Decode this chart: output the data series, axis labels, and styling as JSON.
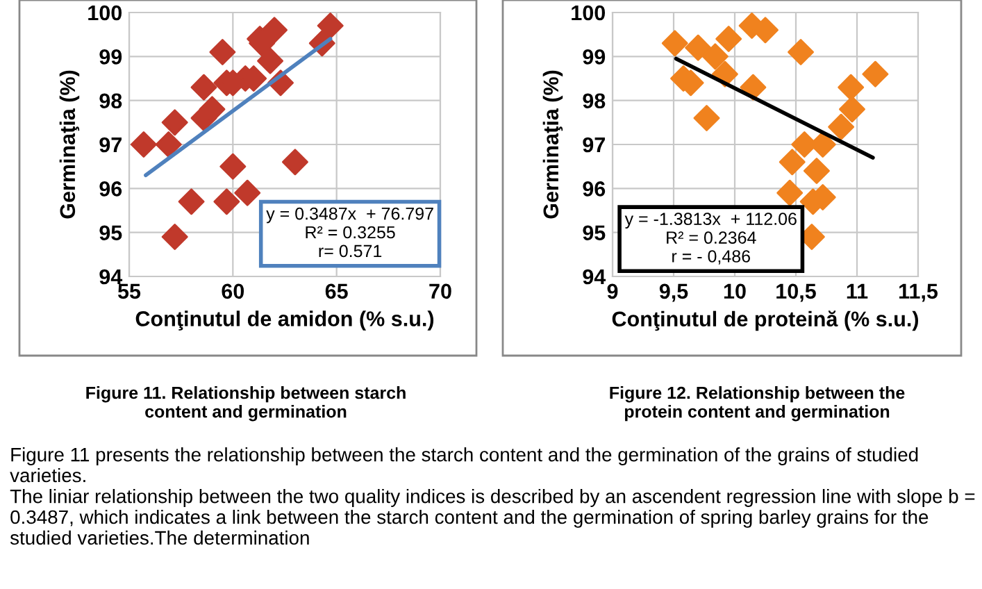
{
  "chart_data": [
    {
      "type": "scatter",
      "xlabel": "Conţinutul de amidon (% s.u.)",
      "ylabel": "Germinaţia (%)",
      "xlim": [
        55,
        70
      ],
      "xticks": [
        55,
        60,
        65,
        70
      ],
      "ylim": [
        94,
        100
      ],
      "yticks": [
        94,
        95,
        96,
        97,
        98,
        99,
        100
      ],
      "grid": true,
      "marker": "diamond",
      "series": [
        {
          "color": "#c0392b",
          "x": [
            55.7,
            56.9,
            57.2,
            57.2,
            58.0,
            58.6,
            58.6,
            59.0,
            59.5,
            59.7,
            60.0,
            59.7,
            60.0,
            60.7,
            60.6,
            61.0,
            61.3,
            61.4,
            61.8,
            62.0,
            62.3,
            63.0,
            64.3,
            64.7
          ],
          "values": [
            97.0,
            97.0,
            97.5,
            94.9,
            95.7,
            98.3,
            97.6,
            97.8,
            99.1,
            98.4,
            98.4,
            95.7,
            96.5,
            95.9,
            98.5,
            98.5,
            99.4,
            99.3,
            98.9,
            99.6,
            98.4,
            96.6,
            99.3,
            99.7
          ]
        },
        {
          "type": "line",
          "marker": "none",
          "color": "#4f81bd",
          "x": [
            55.8,
            64.7
          ],
          "values": [
            96.3,
            99.4
          ]
        }
      ],
      "annotations": [
        "y = 0.3487x  + 76.797\nR² = 0.3255\nr= 0.571",
        "Figure 11. Relationship between starch\ncontent and germination",
        "Figure 11 presents the relationship between the starch content and the germination of the grains of studied varieties.",
        "The liniar relationship between the two quality indices is described by an ascendent regression line with slope b = 0.3487, which indicates a link between the starch content and the germination of spring barley grains for the studied varieties.The determination"
      ]
    },
    {
      "type": "scatter",
      "xlabel": "Conţinutul de proteină (% s.u.)",
      "ylabel": "Germinaţia (%)",
      "xlim": [
        9,
        11.5
      ],
      "xticks": [
        {
          "value": 9,
          "label": "9"
        },
        {
          "value": 9.5,
          "label": "9,5"
        },
        {
          "value": 10,
          "label": "10"
        },
        {
          "value": 10.5,
          "label": "10,5"
        },
        {
          "value": 11,
          "label": "11"
        },
        {
          "value": 11.5,
          "label": "11,5"
        }
      ],
      "ylim": [
        94,
        100
      ],
      "yticks": [
        94,
        95,
        96,
        97,
        98,
        99,
        100
      ],
      "grid": true,
      "marker": "diamond",
      "series": [
        {
          "color": "#f0821e",
          "x": [
            9.51,
            9.58,
            9.64,
            9.7,
            9.77,
            9.84,
            9.92,
            9.95,
            10.15,
            10.14,
            10.25,
            10.54,
            10.45,
            10.47,
            10.57,
            10.67,
            10.64,
            10.72,
            10.63,
            10.72,
            10.87,
            10.96,
            10.95,
            11.15
          ],
          "values": [
            99.3,
            98.5,
            98.4,
            99.2,
            97.6,
            99.0,
            98.6,
            99.4,
            98.3,
            99.7,
            99.6,
            99.1,
            95.9,
            96.6,
            97.0,
            96.4,
            95.7,
            95.8,
            94.9,
            97.0,
            97.4,
            97.8,
            98.3,
            98.6
          ]
        },
        {
          "type": "line",
          "marker": "none",
          "color": "#000000",
          "x": [
            9.52,
            11.13
          ],
          "values": [
            98.95,
            96.7
          ]
        }
      ],
      "annotations": [
        "y = -1.3813x  + 112.06\nR² = 0.2364\nr = - 0,486",
        "Figure 12. Relationship between the\nprotein content and germination"
      ]
    }
  ]
}
